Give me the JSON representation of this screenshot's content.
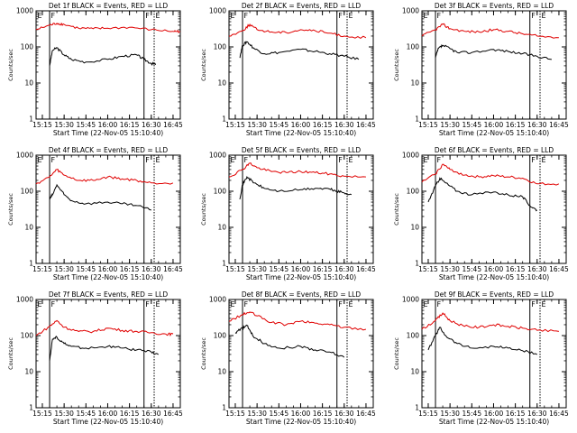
{
  "xtick_labels": [
    "15:15",
    "15:30",
    "15:45",
    "16:00",
    "16:15",
    "16:30",
    "16:45"
  ],
  "ytick_labels": [
    "1",
    "10",
    "100",
    "1000"
  ],
  "ylabel": "Counts/sec",
  "xlabel": "Start Time (22-Nov-05 15:10:40)",
  "marker_labels": [
    "E",
    "F",
    "F",
    "E"
  ],
  "colors": {
    "events": "#000000",
    "lld": "#e00000",
    "axes": "#000000"
  },
  "chart_data": [
    {
      "type": "line",
      "title": "Det 1f BLACK = Events, RED = LLD",
      "xlim": [
        "15:10:40",
        "16:50:00"
      ],
      "ylim": [
        1,
        1000
      ],
      "yscale": "log",
      "markers": [
        "15:10:40",
        "15:20:00",
        "16:25:00",
        "16:32:00"
      ],
      "series": [
        {
          "name": "Events",
          "x": [
            "15:20",
            "15:22",
            "15:25",
            "15:30",
            "15:35",
            "15:45",
            "16:00",
            "16:10",
            "16:20",
            "16:25",
            "16:30",
            "16:33"
          ],
          "values": [
            30,
            80,
            95,
            60,
            45,
            38,
            45,
            55,
            60,
            45,
            35,
            32
          ]
        },
        {
          "name": "LLD",
          "x": [
            "15:10:40",
            "15:20",
            "15:25",
            "15:30",
            "15:40",
            "15:50",
            "16:00",
            "16:15",
            "16:30",
            "16:45",
            "16:50"
          ],
          "values": [
            300,
            400,
            450,
            420,
            330,
            320,
            330,
            350,
            300,
            270,
            270
          ]
        }
      ]
    },
    {
      "type": "line",
      "title": "Det 2f BLACK = Events, RED = LLD",
      "xlim": [
        "15:10:40",
        "16:50:00"
      ],
      "ylim": [
        1,
        1000
      ],
      "yscale": "log",
      "markers": [
        "15:10:40",
        "15:20:00",
        "16:25:00",
        "16:32:00"
      ],
      "series": [
        {
          "name": "Events",
          "x": [
            "15:18",
            "15:20",
            "15:23",
            "15:28",
            "15:35",
            "15:45",
            "16:00",
            "16:10",
            "16:20",
            "16:30",
            "16:40"
          ],
          "values": [
            50,
            110,
            140,
            90,
            65,
            70,
            85,
            75,
            65,
            55,
            45
          ]
        },
        {
          "name": "LLD",
          "x": [
            "15:10:40",
            "15:20",
            "15:25",
            "15:30",
            "15:40",
            "15:50",
            "16:00",
            "16:10",
            "16:20",
            "16:30",
            "16:45"
          ],
          "values": [
            200,
            280,
            420,
            300,
            260,
            250,
            300,
            280,
            240,
            200,
            180
          ]
        }
      ]
    },
    {
      "type": "line",
      "title": "Det 3f BLACK = Events, RED = LLD",
      "xlim": [
        "15:10:40",
        "16:50:00"
      ],
      "ylim": [
        1,
        1000
      ],
      "yscale": "log",
      "markers": [
        "15:10:40",
        "15:20:00",
        "16:25:00",
        "16:32:00"
      ],
      "series": [
        {
          "name": "Events",
          "x": [
            "15:20",
            "15:22",
            "15:25",
            "15:30",
            "15:35",
            "15:45",
            "16:00",
            "16:10",
            "16:20",
            "16:30",
            "16:40"
          ],
          "values": [
            50,
            90,
            110,
            90,
            70,
            70,
            85,
            75,
            65,
            55,
            45
          ]
        },
        {
          "name": "LLD",
          "x": [
            "15:10:40",
            "15:20",
            "15:25",
            "15:30",
            "15:40",
            "15:50",
            "16:00",
            "16:10",
            "16:20",
            "16:30",
            "16:45"
          ],
          "values": [
            200,
            300,
            420,
            320,
            270,
            260,
            300,
            270,
            230,
            200,
            180
          ]
        }
      ]
    },
    {
      "type": "line",
      "title": "Det 4f BLACK = Events, RED = LLD",
      "xlim": [
        "15:10:40",
        "16:50:00"
      ],
      "ylim": [
        1,
        1000
      ],
      "yscale": "log",
      "markers": [
        "15:10:40",
        "15:20:00",
        "16:25:00",
        "16:32:00"
      ],
      "series": [
        {
          "name": "Events",
          "x": [
            "15:20",
            "15:22",
            "15:25",
            "15:30",
            "15:35",
            "15:45",
            "16:00",
            "16:10",
            "16:20",
            "16:30"
          ],
          "values": [
            60,
            80,
            150,
            80,
            55,
            45,
            50,
            45,
            40,
            30
          ]
        },
        {
          "name": "LLD",
          "x": [
            "15:10:40",
            "15:20",
            "15:25",
            "15:30",
            "15:40",
            "15:50",
            "16:00",
            "16:10",
            "16:20",
            "16:30",
            "16:45"
          ],
          "values": [
            160,
            250,
            400,
            280,
            200,
            200,
            250,
            220,
            200,
            170,
            170
          ]
        }
      ]
    },
    {
      "type": "line",
      "title": "Det 5f BLACK = Events, RED = LLD",
      "xlim": [
        "15:10:40",
        "16:50:00"
      ],
      "ylim": [
        1,
        1000
      ],
      "yscale": "log",
      "markers": [
        "15:10:40",
        "15:20:00",
        "16:25:00",
        "16:32:00"
      ],
      "series": [
        {
          "name": "Events",
          "x": [
            "15:18",
            "15:20",
            "15:23",
            "15:28",
            "15:35",
            "15:45",
            "16:00",
            "16:10",
            "16:20",
            "16:25",
            "16:30",
            "16:35"
          ],
          "values": [
            60,
            150,
            250,
            170,
            120,
            100,
            110,
            120,
            115,
            100,
            90,
            80
          ]
        },
        {
          "name": "LLD",
          "x": [
            "15:10:40",
            "15:20",
            "15:25",
            "15:30",
            "15:40",
            "15:50",
            "16:00",
            "16:10",
            "16:20",
            "16:30",
            "16:45"
          ],
          "values": [
            250,
            400,
            600,
            450,
            350,
            330,
            350,
            330,
            300,
            260,
            250
          ]
        }
      ]
    },
    {
      "type": "line",
      "title": "Det 6f BLACK = Events, RED = LLD",
      "xlim": [
        "15:10:40",
        "16:50:00"
      ],
      "ylim": [
        1,
        1000
      ],
      "yscale": "log",
      "markers": [
        "15:10:40",
        "15:20:00",
        "16:25:00",
        "16:32:00"
      ],
      "series": [
        {
          "name": "Events",
          "x": [
            "15:15",
            "15:20",
            "15:23",
            "15:27",
            "15:35",
            "15:45",
            "16:00",
            "16:10",
            "16:20",
            "16:25",
            "16:30"
          ],
          "values": [
            50,
            140,
            230,
            170,
            100,
            80,
            95,
            80,
            70,
            40,
            30
          ]
        },
        {
          "name": "LLD",
          "x": [
            "15:10:40",
            "15:20",
            "15:25",
            "15:30",
            "15:40",
            "15:50",
            "16:00",
            "16:10",
            "16:20",
            "16:30",
            "16:45"
          ],
          "values": [
            180,
            300,
            560,
            400,
            280,
            250,
            270,
            250,
            230,
            160,
            160
          ]
        }
      ]
    },
    {
      "type": "line",
      "title": "Det 7f BLACK = Events, RED = LLD",
      "xlim": [
        "15:10:40",
        "16:50:00"
      ],
      "ylim": [
        1,
        1000
      ],
      "yscale": "log",
      "markers": [
        "15:10:40",
        "15:20:00",
        "16:25:00",
        "16:32:00"
      ],
      "series": [
        {
          "name": "Events",
          "x": [
            "15:20",
            "15:22",
            "15:25",
            "15:30",
            "15:35",
            "15:45",
            "16:00",
            "16:10",
            "16:20",
            "16:30",
            "16:35"
          ],
          "values": [
            20,
            80,
            90,
            60,
            50,
            45,
            50,
            45,
            40,
            35,
            30
          ]
        },
        {
          "name": "LLD",
          "x": [
            "15:10:40",
            "15:20",
            "15:25",
            "15:30",
            "15:40",
            "15:50",
            "16:00",
            "16:10",
            "16:20",
            "16:30",
            "16:40",
            "16:45"
          ],
          "values": [
            100,
            180,
            260,
            170,
            130,
            130,
            160,
            140,
            130,
            120,
            110,
            110
          ]
        }
      ]
    },
    {
      "type": "line",
      "title": "Det 8f BLACK = Events, RED = LLD",
      "xlim": [
        "15:10:40",
        "16:50:00"
      ],
      "ylim": [
        1,
        1000
      ],
      "yscale": "log",
      "markers": [
        "15:10:40",
        "15:20:00",
        "16:25:00",
        "16:32:00"
      ],
      "series": [
        {
          "name": "Events",
          "x": [
            "15:15",
            "15:20",
            "15:23",
            "15:27",
            "15:35",
            "15:45",
            "16:00",
            "16:10",
            "16:20",
            "16:30"
          ],
          "values": [
            120,
            160,
            190,
            100,
            60,
            45,
            50,
            40,
            35,
            25
          ]
        },
        {
          "name": "LLD",
          "x": [
            "15:10:40",
            "15:20",
            "15:25",
            "15:30",
            "15:40",
            "15:50",
            "16:00",
            "16:10",
            "16:20",
            "16:30",
            "16:45"
          ],
          "values": [
            250,
            380,
            450,
            350,
            230,
            200,
            250,
            220,
            200,
            170,
            150
          ]
        }
      ]
    },
    {
      "type": "line",
      "title": "Det 9f BLACK = Events, RED = LLD",
      "xlim": [
        "15:10:40",
        "16:50:00"
      ],
      "ylim": [
        1,
        1000
      ],
      "yscale": "log",
      "markers": [
        "15:10:40",
        "15:20:00",
        "16:25:00",
        "16:32:00"
      ],
      "series": [
        {
          "name": "Events",
          "x": [
            "15:15",
            "15:20",
            "15:23",
            "15:27",
            "15:35",
            "15:45",
            "16:00",
            "16:10",
            "16:20",
            "16:30"
          ],
          "values": [
            40,
            100,
            170,
            100,
            60,
            45,
            50,
            45,
            38,
            30
          ]
        },
        {
          "name": "LLD",
          "x": [
            "15:10:40",
            "15:20",
            "15:25",
            "15:30",
            "15:40",
            "15:50",
            "16:00",
            "16:10",
            "16:20",
            "16:30",
            "16:45"
          ],
          "values": [
            150,
            260,
            420,
            260,
            180,
            170,
            200,
            180,
            160,
            140,
            130
          ]
        }
      ]
    }
  ]
}
